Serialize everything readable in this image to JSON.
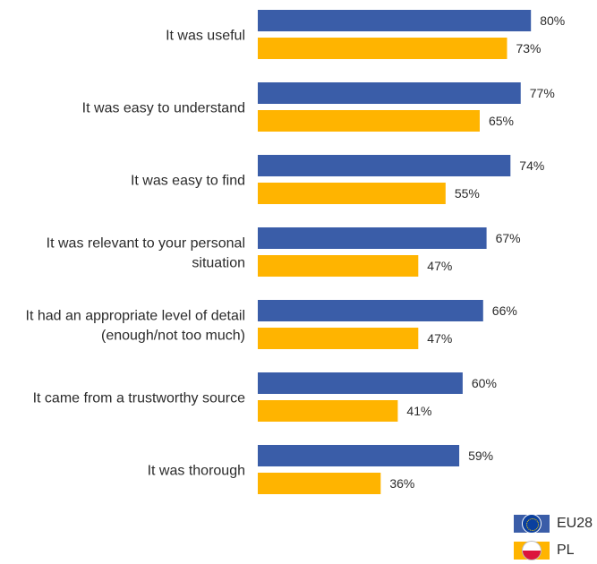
{
  "chart_data": {
    "type": "bar",
    "orientation": "horizontal",
    "categories": [
      [
        "It was useful"
      ],
      [
        "It was easy to understand"
      ],
      [
        "It was easy to find"
      ],
      [
        "It was relevant to your personal",
        "situation"
      ],
      [
        "It had an appropriate level of detail",
        "(enough/not too much)"
      ],
      [
        "It came from a trustworthy source"
      ],
      [
        "It was thorough"
      ]
    ],
    "series": [
      {
        "name": "EU28",
        "values": [
          80,
          77,
          74,
          67,
          66,
          60,
          59
        ],
        "color": "#3a5da8",
        "icon": "eu-flag-icon"
      },
      {
        "name": "PL",
        "values": [
          73,
          65,
          55,
          47,
          47,
          41,
          36
        ],
        "color": "#ffb400",
        "icon": "poland-flag-icon"
      }
    ],
    "value_suffix": "%",
    "xlim": [
      0,
      100
    ],
    "grid": false,
    "legend_position": "bottom-right"
  }
}
